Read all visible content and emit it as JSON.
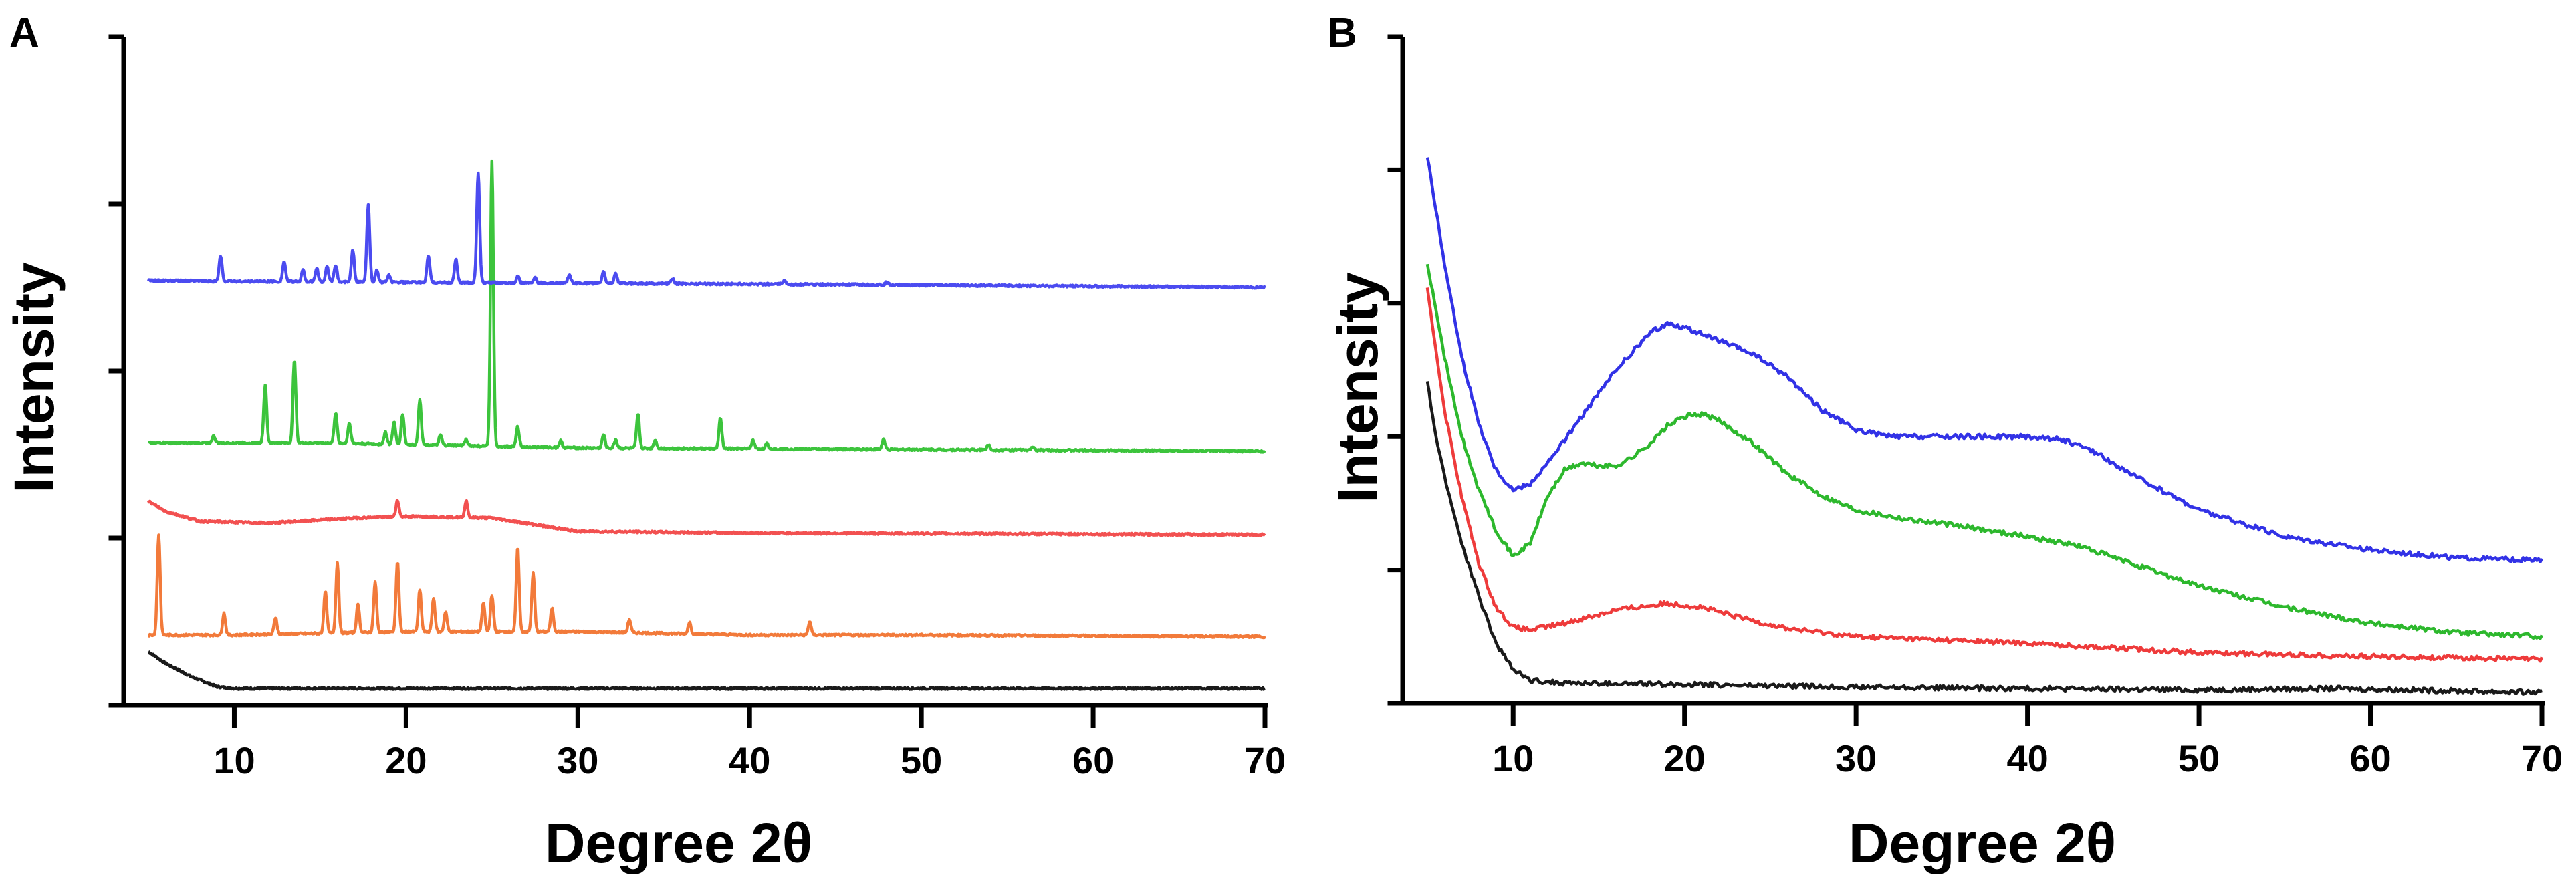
{
  "chart_data": [
    {
      "panel": "A",
      "type": "line",
      "title": "",
      "xlabel": "Degree 2θ",
      "ylabel": "Intensity",
      "xlim": [
        5,
        70
      ],
      "ylim": [
        0,
        4
      ],
      "xticks": [
        10,
        20,
        30,
        40,
        50,
        60,
        70
      ],
      "yticks": [
        0,
        1,
        2,
        3,
        4
      ],
      "series": [
        {
          "name": "black",
          "color": "#1a1a1a",
          "baseline": [
            [
              5,
              0.32
            ],
            [
              6,
              0.25
            ],
            [
              7.5,
              0.17
            ],
            [
              9,
              0.11
            ],
            [
              10,
              0.1
            ],
            [
              12,
              0.1
            ],
            [
              70,
              0.1
            ]
          ],
          "peaks": []
        },
        {
          "name": "orange",
          "color": "#f27a3a",
          "baseline": [
            [
              5,
              0.42
            ],
            [
              10,
              0.42
            ],
            [
              20,
              0.44
            ],
            [
              30,
              0.44
            ],
            [
              40,
              0.42
            ],
            [
              50,
              0.42
            ],
            [
              70,
              0.41
            ]
          ],
          "peaks": [
            [
              5.6,
              0.6
            ],
            [
              9.4,
              0.13
            ],
            [
              12.4,
              0.1
            ],
            [
              15.3,
              0.25
            ],
            [
              16.0,
              0.42
            ],
            [
              17.2,
              0.17
            ],
            [
              18.2,
              0.3
            ],
            [
              19.5,
              0.42
            ],
            [
              20.8,
              0.25
            ],
            [
              21.6,
              0.2
            ],
            [
              22.3,
              0.12
            ],
            [
              24.5,
              0.17
            ],
            [
              25.0,
              0.22
            ],
            [
              26.5,
              0.5
            ],
            [
              27.4,
              0.35
            ],
            [
              28.5,
              0.14
            ],
            [
              33.0,
              0.08
            ],
            [
              36.5,
              0.07
            ],
            [
              43.5,
              0.08
            ]
          ]
        },
        {
          "name": "red",
          "color": "#f25050",
          "baseline": [
            [
              5,
              1.22
            ],
            [
              6,
              1.16
            ],
            [
              8,
              1.1
            ],
            [
              12,
              1.09
            ],
            [
              17,
              1.12
            ],
            [
              20,
              1.13
            ],
            [
              25,
              1.12
            ],
            [
              30,
              1.04
            ],
            [
              40,
              1.03
            ],
            [
              70,
              1.02
            ]
          ],
          "peaks": [
            [
              19.5,
              0.1
            ],
            [
              23.5,
              0.1
            ]
          ]
        },
        {
          "name": "green",
          "color": "#3cc43c",
          "baseline": [
            [
              5,
              1.57
            ],
            [
              15,
              1.57
            ],
            [
              30,
              1.54
            ],
            [
              50,
              1.53
            ],
            [
              70,
              1.52
            ]
          ],
          "peaks": [
            [
              8.8,
              0.04
            ],
            [
              11.8,
              0.35
            ],
            [
              13.5,
              0.5
            ],
            [
              15.9,
              0.18
            ],
            [
              16.7,
              0.12
            ],
            [
              18.8,
              0.07
            ],
            [
              19.3,
              0.13
            ],
            [
              19.8,
              0.18
            ],
            [
              20.8,
              0.27
            ],
            [
              22.0,
              0.06
            ],
            [
              23.5,
              0.04
            ],
            [
              25.0,
              1.7
            ],
            [
              26.5,
              0.12
            ],
            [
              29.0,
              0.04
            ],
            [
              31.5,
              0.08
            ],
            [
              32.2,
              0.05
            ],
            [
              33.5,
              0.2
            ],
            [
              34.5,
              0.05
            ],
            [
              38.3,
              0.18
            ],
            [
              40.2,
              0.05
            ],
            [
              41.0,
              0.03
            ],
            [
              47.8,
              0.06
            ],
            [
              53.9,
              0.03
            ],
            [
              56.5,
              0.02
            ]
          ]
        },
        {
          "name": "blue",
          "color": "#4b4bf0",
          "baseline": [
            [
              5,
              2.54
            ],
            [
              20,
              2.53
            ],
            [
              40,
              2.52
            ],
            [
              70,
              2.5
            ]
          ],
          "peaks": [
            [
              9.2,
              0.15
            ],
            [
              12.9,
              0.12
            ],
            [
              14.0,
              0.07
            ],
            [
              14.8,
              0.08
            ],
            [
              15.4,
              0.09
            ],
            [
              15.9,
              0.1
            ],
            [
              16.9,
              0.19
            ],
            [
              17.8,
              0.46
            ],
            [
              18.3,
              0.07
            ],
            [
              19.0,
              0.04
            ],
            [
              21.3,
              0.16
            ],
            [
              22.9,
              0.14
            ],
            [
              24.2,
              0.66
            ],
            [
              26.5,
              0.04
            ],
            [
              27.5,
              0.03
            ],
            [
              29.5,
              0.05
            ],
            [
              31.5,
              0.07
            ],
            [
              32.2,
              0.06
            ],
            [
              35.5,
              0.03
            ],
            [
              42.0,
              0.02
            ],
            [
              48.0,
              0.02
            ]
          ]
        }
      ]
    },
    {
      "panel": "B",
      "type": "line",
      "title": "",
      "xlabel": "Degree 2θ",
      "ylabel": "Intensity",
      "xlim": [
        5,
        70
      ],
      "ylim": [
        0,
        5
      ],
      "xticks": [
        10,
        20,
        30,
        40,
        50,
        60,
        70
      ],
      "yticks": [
        0,
        1,
        2,
        3,
        4,
        5
      ],
      "series": [
        {
          "name": "black",
          "color": "#1a1a1a",
          "points": [
            [
              5,
              2.4
            ],
            [
              5.5,
              2.0
            ],
            [
              6,
              1.7
            ],
            [
              7,
              1.2
            ],
            [
              8,
              0.8
            ],
            [
              9,
              0.45
            ],
            [
              10,
              0.25
            ],
            [
              11,
              0.17
            ],
            [
              13,
              0.15
            ],
            [
              20,
              0.14
            ],
            [
              30,
              0.12
            ],
            [
              40,
              0.11
            ],
            [
              50,
              0.1
            ],
            [
              58,
              0.11
            ],
            [
              62,
              0.1
            ],
            [
              70,
              0.08
            ]
          ]
        },
        {
          "name": "red",
          "color": "#ee3b3b",
          "points": [
            [
              5,
              3.1
            ],
            [
              6,
              2.2
            ],
            [
              7,
              1.55
            ],
            [
              8,
              1.05
            ],
            [
              9,
              0.72
            ],
            [
              10,
              0.57
            ],
            [
              11,
              0.55
            ],
            [
              13,
              0.6
            ],
            [
              16,
              0.7
            ],
            [
              19,
              0.75
            ],
            [
              21,
              0.72
            ],
            [
              23,
              0.65
            ],
            [
              26,
              0.56
            ],
            [
              30,
              0.5
            ],
            [
              40,
              0.45
            ],
            [
              50,
              0.38
            ],
            [
              60,
              0.35
            ],
            [
              70,
              0.33
            ]
          ]
        },
        {
          "name": "green",
          "color": "#2db82d",
          "points": [
            [
              5,
              3.3
            ],
            [
              6,
              2.6
            ],
            [
              7,
              2.0
            ],
            [
              8,
              1.6
            ],
            [
              9,
              1.3
            ],
            [
              10,
              1.1
            ],
            [
              11,
              1.2
            ],
            [
              12,
              1.55
            ],
            [
              13,
              1.75
            ],
            [
              14,
              1.8
            ],
            [
              15,
              1.78
            ],
            [
              16,
              1.78
            ],
            [
              17,
              1.85
            ],
            [
              18,
              1.95
            ],
            [
              19,
              2.08
            ],
            [
              20,
              2.15
            ],
            [
              21,
              2.17
            ],
            [
              22,
              2.12
            ],
            [
              24,
              1.95
            ],
            [
              26,
              1.72
            ],
            [
              28,
              1.56
            ],
            [
              30,
              1.45
            ],
            [
              33,
              1.38
            ],
            [
              36,
              1.33
            ],
            [
              40,
              1.25
            ],
            [
              43,
              1.18
            ],
            [
              46,
              1.05
            ],
            [
              50,
              0.88
            ],
            [
              55,
              0.72
            ],
            [
              60,
              0.6
            ],
            [
              65,
              0.53
            ],
            [
              70,
              0.5
            ]
          ]
        },
        {
          "name": "blue",
          "color": "#3232e6",
          "points": [
            [
              5,
              4.1
            ],
            [
              6,
              3.3
            ],
            [
              7,
              2.6
            ],
            [
              8,
              2.1
            ],
            [
              9,
              1.75
            ],
            [
              10,
              1.6
            ],
            [
              11,
              1.65
            ],
            [
              12,
              1.8
            ],
            [
              14,
              2.15
            ],
            [
              16,
              2.5
            ],
            [
              18,
              2.78
            ],
            [
              19,
              2.85
            ],
            [
              20,
              2.82
            ],
            [
              22,
              2.72
            ],
            [
              24,
              2.62
            ],
            [
              26,
              2.45
            ],
            [
              28,
              2.2
            ],
            [
              30,
              2.05
            ],
            [
              32,
              2.0
            ],
            [
              35,
              2.0
            ],
            [
              38,
              2.0
            ],
            [
              40,
              2.0
            ],
            [
              42,
              1.98
            ],
            [
              44,
              1.88
            ],
            [
              46,
              1.72
            ],
            [
              50,
              1.45
            ],
            [
              55,
              1.25
            ],
            [
              60,
              1.15
            ],
            [
              65,
              1.09
            ],
            [
              70,
              1.07
            ]
          ]
        }
      ]
    }
  ]
}
